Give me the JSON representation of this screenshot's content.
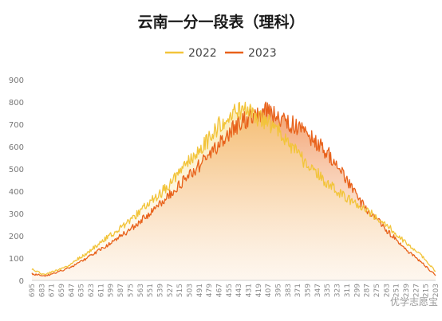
{
  "chart_data": {
    "type": "area",
    "title": "云南一分一段表（理科）",
    "xlabel": "",
    "ylabel": "",
    "ylim": [
      0,
      900
    ],
    "yticks": [
      0,
      100,
      200,
      300,
      400,
      500,
      600,
      700,
      800,
      900
    ],
    "x_tick_labels": [
      "695",
      "683",
      "671",
      "659",
      "647",
      "635",
      "623",
      "611",
      "599",
      "587",
      "575",
      "563",
      "551",
      "539",
      "527",
      "515",
      "503",
      "491",
      "479",
      "467",
      "455",
      "443",
      "431",
      "419",
      "407",
      "395",
      "383",
      "371",
      "359",
      "347",
      "335",
      "323",
      "311",
      "299",
      "287",
      "275",
      "263",
      "251",
      "239",
      "227",
      "215",
      "203"
    ],
    "x_range": [
      695,
      203
    ],
    "grid": false,
    "legend_position": "top",
    "series": [
      {
        "name": "2022",
        "color": "#F2C43A",
        "points": [
          [
            695,
            50
          ],
          [
            680,
            25
          ],
          [
            665,
            45
          ],
          [
            650,
            65
          ],
          [
            640,
            95
          ],
          [
            630,
            115
          ],
          [
            620,
            145
          ],
          [
            610,
            175
          ],
          [
            600,
            200
          ],
          [
            590,
            225
          ],
          [
            580,
            255
          ],
          [
            570,
            285
          ],
          [
            560,
            320
          ],
          [
            550,
            355
          ],
          [
            540,
            385
          ],
          [
            530,
            420
          ],
          [
            520,
            460
          ],
          [
            510,
            505
          ],
          [
            500,
            550
          ],
          [
            490,
            590
          ],
          [
            480,
            630
          ],
          [
            470,
            680
          ],
          [
            460,
            720
          ],
          [
            450,
            755
          ],
          [
            440,
            760
          ],
          [
            430,
            750
          ],
          [
            420,
            730
          ],
          [
            410,
            710
          ],
          [
            400,
            690
          ],
          [
            390,
            650
          ],
          [
            380,
            605
          ],
          [
            370,
            560
          ],
          [
            360,
            520
          ],
          [
            350,
            490
          ],
          [
            340,
            450
          ],
          [
            330,
            420
          ],
          [
            320,
            390
          ],
          [
            310,
            365
          ],
          [
            300,
            340
          ],
          [
            290,
            320
          ],
          [
            280,
            295
          ],
          [
            270,
            270
          ],
          [
            260,
            240
          ],
          [
            250,
            205
          ],
          [
            240,
            170
          ],
          [
            230,
            140
          ],
          [
            220,
            110
          ],
          [
            210,
            70
          ],
          [
            203,
            40
          ]
        ]
      },
      {
        "name": "2023",
        "color": "#E8611A",
        "points": [
          [
            695,
            30
          ],
          [
            680,
            20
          ],
          [
            665,
            35
          ],
          [
            650,
            55
          ],
          [
            640,
            75
          ],
          [
            630,
            95
          ],
          [
            620,
            120
          ],
          [
            610,
            140
          ],
          [
            600,
            165
          ],
          [
            590,
            190
          ],
          [
            580,
            215
          ],
          [
            570,
            245
          ],
          [
            560,
            275
          ],
          [
            550,
            305
          ],
          [
            540,
            340
          ],
          [
            530,
            375
          ],
          [
            520,
            410
          ],
          [
            510,
            445
          ],
          [
            500,
            480
          ],
          [
            490,
            520
          ],
          [
            480,
            560
          ],
          [
            470,
            600
          ],
          [
            460,
            640
          ],
          [
            450,
            680
          ],
          [
            440,
            705
          ],
          [
            430,
            730
          ],
          [
            420,
            750
          ],
          [
            410,
            760
          ],
          [
            400,
            745
          ],
          [
            390,
            730
          ],
          [
            380,
            705
          ],
          [
            370,
            680
          ],
          [
            360,
            655
          ],
          [
            350,
            625
          ],
          [
            340,
            590
          ],
          [
            330,
            550
          ],
          [
            320,
            500
          ],
          [
            310,
            440
          ],
          [
            300,
            380
          ],
          [
            290,
            330
          ],
          [
            280,
            290
          ],
          [
            270,
            255
          ],
          [
            260,
            215
          ],
          [
            250,
            180
          ],
          [
            240,
            140
          ],
          [
            230,
            110
          ],
          [
            220,
            80
          ],
          [
            210,
            45
          ],
          [
            203,
            25
          ]
        ]
      }
    ]
  },
  "watermark": "优学志愿宝"
}
